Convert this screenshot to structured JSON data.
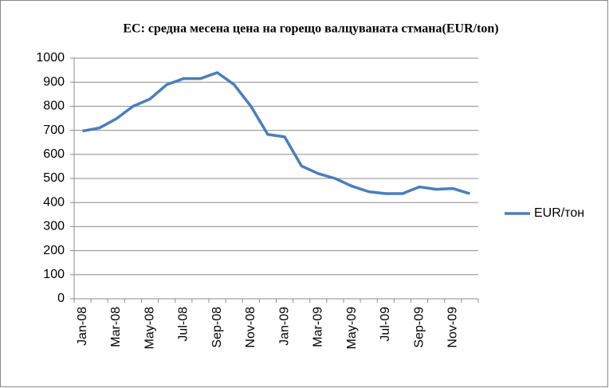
{
  "chart_data": {
    "type": "line",
    "title": "ЕС: средна месена цена на горещо валцуваната стмана(EUR/ton)",
    "categories": [
      "Jan-08",
      null,
      "Mar-08",
      null,
      "May-08",
      null,
      "Jul-08",
      null,
      "Sep-08",
      null,
      "Nov-08",
      null,
      "Jan-09",
      null,
      "Mar-09",
      null,
      "May-09",
      null,
      "Jul-09",
      null,
      "Sep-09",
      null,
      "Nov-09",
      null
    ],
    "series": [
      {
        "name": "EUR/тон",
        "color": "#4a7ebb",
        "values": [
          697,
          710,
          748,
          800,
          830,
          890,
          915,
          915,
          940,
          890,
          800,
          683,
          673,
          552,
          520,
          500,
          468,
          445,
          437,
          437,
          465,
          455,
          458,
          437
        ]
      }
    ],
    "ylim": [
      0,
      1000
    ],
    "yticks": [
      0,
      100,
      200,
      300,
      400,
      500,
      600,
      700,
      800,
      900,
      1000
    ],
    "grid": true,
    "legend": "right"
  }
}
